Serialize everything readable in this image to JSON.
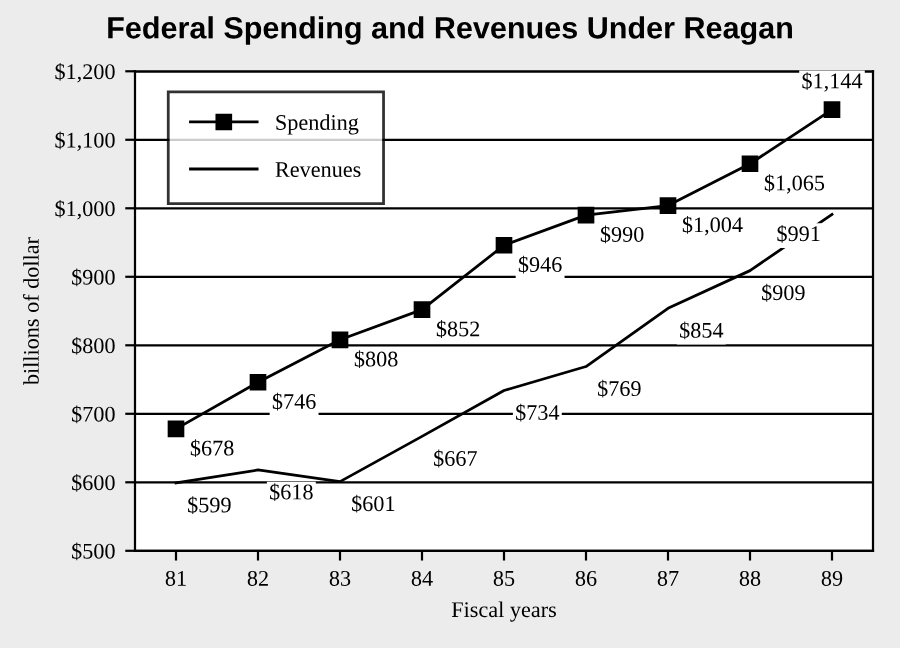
{
  "chart_data": {
    "type": "line",
    "title": "Federal Spending and Revenues Under Reagan",
    "xlabel": "Fiscal years",
    "ylabel": "billions of dollar",
    "categories": [
      "81",
      "82",
      "83",
      "84",
      "85",
      "86",
      "87",
      "88",
      "89"
    ],
    "series": [
      {
        "name": "Spending",
        "color": "#000000",
        "marker": "square",
        "values": [
          678,
          746,
          808,
          852,
          946,
          990,
          1004,
          1065,
          1144
        ],
        "value_labels": [
          "$678",
          "$746",
          "$808",
          "$852",
          "$946",
          "$990",
          "$1,004",
          "$1,065",
          "$1,144"
        ]
      },
      {
        "name": "Revenues",
        "color": "#000000",
        "marker": "none",
        "values": [
          599,
          618,
          601,
          667,
          734,
          769,
          854,
          909,
          991
        ],
        "value_labels": [
          "$599",
          "$618",
          "$601",
          "$667",
          "$734",
          "$769",
          "$854",
          "$909",
          "$991"
        ]
      }
    ],
    "ylim": [
      500,
      1200
    ],
    "yticks": [
      {
        "value": 500,
        "label": "$500"
      },
      {
        "value": 600,
        "label": "$600"
      },
      {
        "value": 700,
        "label": "$700"
      },
      {
        "value": 800,
        "label": "$800"
      },
      {
        "value": 900,
        "label": "$900"
      },
      {
        "value": 1000,
        "label": "$1,000"
      },
      {
        "value": 1100,
        "label": "$1,100"
      },
      {
        "value": 1200,
        "label": "$1,200"
      }
    ],
    "grid": "y",
    "legend": "top left"
  }
}
